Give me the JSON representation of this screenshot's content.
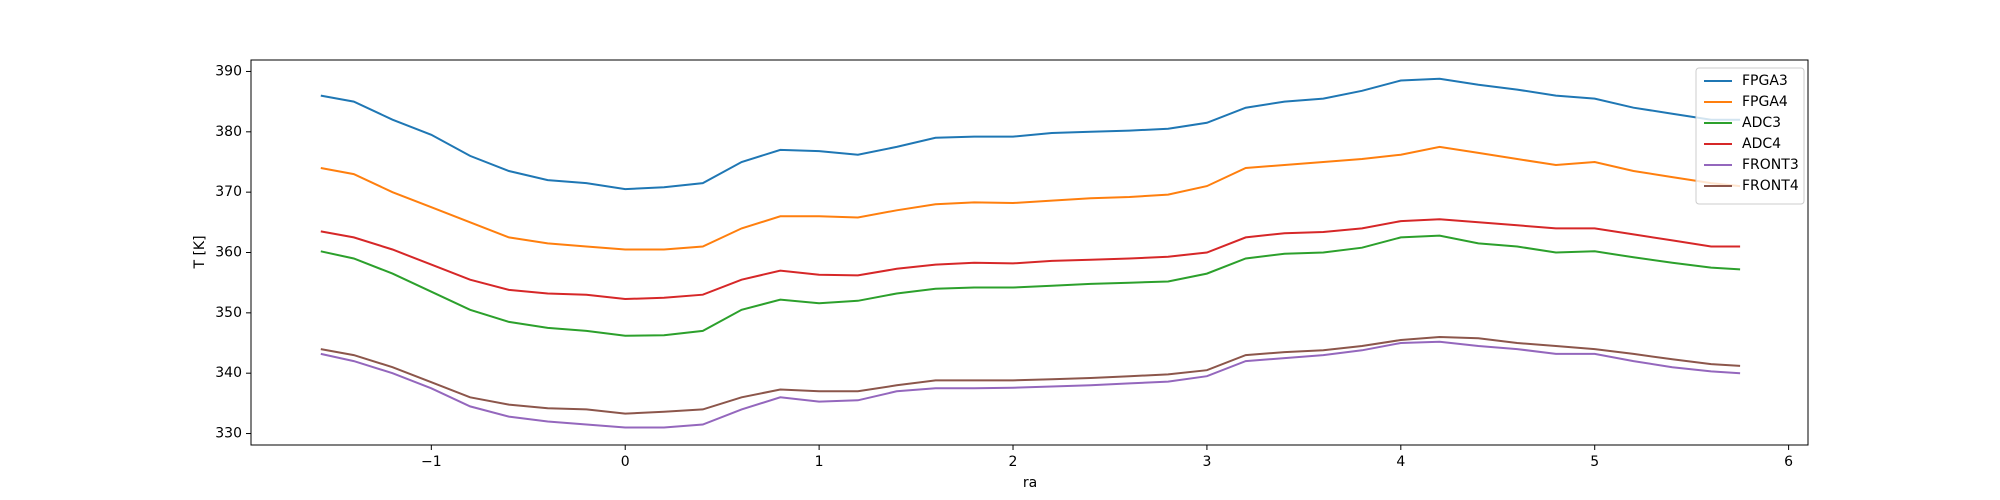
{
  "chart_data": {
    "type": "line",
    "xlabel": "ra",
    "ylabel": "T [K]",
    "x": [
      -1.57,
      -1.4,
      -1.2,
      -1.0,
      -0.8,
      -0.6,
      -0.4,
      -0.2,
      0,
      0.2,
      0.4,
      0.6,
      0.8,
      1.0,
      1.2,
      1.4,
      1.6,
      1.8,
      2.0,
      2.2,
      2.4,
      2.6,
      2.8,
      3.0,
      3.2,
      3.4,
      3.6,
      3.8,
      4.0,
      4.2,
      4.4,
      4.6,
      4.8,
      5.0,
      5.2,
      5.4,
      5.6,
      5.75
    ],
    "series": [
      {
        "name": "FPGA3",
        "color": "#1f77b4",
        "values": [
          386,
          385,
          382,
          379.5,
          376,
          373.5,
          372,
          371.5,
          370.5,
          370.8,
          371.5,
          375,
          377,
          376.8,
          376.2,
          377.5,
          379,
          379.2,
          379.2,
          379.8,
          380,
          380.2,
          380.5,
          381.5,
          384,
          385,
          385.5,
          386.8,
          388.5,
          388.8,
          387.8,
          387,
          386,
          385.5,
          384,
          383,
          382,
          382
        ]
      },
      {
        "name": "FPGA4",
        "color": "#ff7f0e",
        "values": [
          374,
          373,
          370,
          367.5,
          365,
          362.5,
          361.5,
          361,
          360.5,
          360.5,
          361,
          364,
          366,
          366,
          365.8,
          367,
          368,
          368.3,
          368.2,
          368.6,
          369,
          369.2,
          369.6,
          371,
          374,
          374.5,
          375,
          375.5,
          376.2,
          377.5,
          376.5,
          375.5,
          374.5,
          375,
          373.5,
          372.5,
          371.5,
          371
        ]
      },
      {
        "name": "ADC3",
        "color": "#2ca02c",
        "values": [
          360.2,
          359,
          356.5,
          353.5,
          350.5,
          348.5,
          347.5,
          347,
          346.2,
          346.3,
          347,
          350.5,
          352.2,
          351.6,
          352,
          353.2,
          354,
          354.2,
          354.2,
          354.5,
          354.8,
          355,
          355.2,
          356.5,
          359,
          359.8,
          360,
          360.8,
          362.5,
          362.8,
          361.5,
          361,
          360,
          360.2,
          359.2,
          358.3,
          357.5,
          357.2
        ]
      },
      {
        "name": "ADC4",
        "color": "#d62728",
        "values": [
          363.5,
          362.5,
          360.5,
          358,
          355.5,
          353.8,
          353.2,
          353,
          352.3,
          352.5,
          353,
          355.5,
          357,
          356.3,
          356.2,
          357.3,
          358,
          358.3,
          358.2,
          358.6,
          358.8,
          359,
          359.3,
          360,
          362.5,
          363.2,
          363.4,
          364,
          365.2,
          365.5,
          365,
          364.5,
          364,
          364,
          363,
          362,
          361,
          361
        ]
      },
      {
        "name": "FRONT3",
        "color": "#9467bd",
        "values": [
          343.2,
          342,
          340,
          337.5,
          334.5,
          332.8,
          332,
          331.5,
          331,
          331,
          331.5,
          334,
          336,
          335.3,
          335.5,
          337,
          337.5,
          337.5,
          337.6,
          337.8,
          338,
          338.3,
          338.6,
          339.5,
          342,
          342.5,
          343,
          343.8,
          345,
          345.2,
          344.5,
          344,
          343.2,
          343.2,
          342,
          341,
          340.3,
          340
        ]
      },
      {
        "name": "FRONT4",
        "color": "#8c564b",
        "values": [
          344,
          343,
          341,
          338.5,
          336,
          334.8,
          334.2,
          334,
          333.3,
          333.6,
          334,
          336,
          337.3,
          337,
          337,
          338,
          338.8,
          338.8,
          338.8,
          339,
          339.2,
          339.5,
          339.8,
          340.5,
          343,
          343.5,
          343.8,
          344.5,
          345.5,
          346,
          345.8,
          345,
          344.5,
          344,
          343.2,
          342.3,
          341.5,
          341.2
        ]
      }
    ],
    "xlim": [
      -1.93,
      6.1
    ],
    "xticks": [
      {
        "value": -1,
        "label": "−1"
      },
      0,
      1,
      2,
      3,
      4,
      5,
      6
    ],
    "ylim": [
      328.1,
      391.9
    ],
    "yticks": [
      330,
      340,
      350,
      360,
      370,
      380,
      390
    ],
    "legend": "upper right",
    "grid": false
  }
}
